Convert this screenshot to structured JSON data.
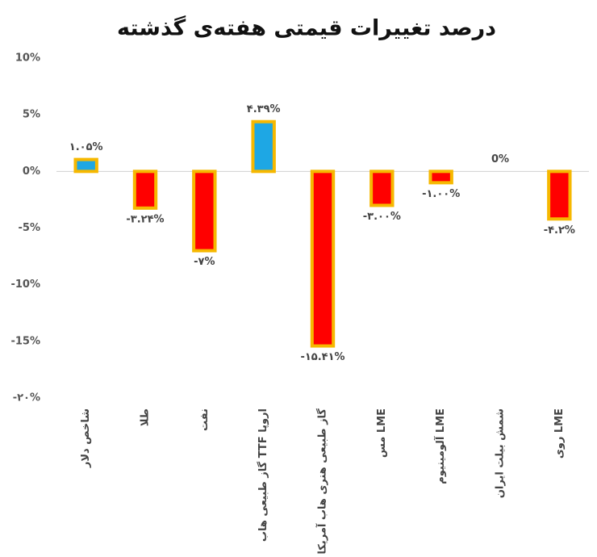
{
  "chart_data": {
    "type": "bar",
    "title": "درصد تغییرات قیمتی هفته‌ی گذشته",
    "categories": [
      "شاخص دلار",
      "طلا",
      "نفت",
      "گاز طبیعی هاب TTF اروپا",
      "گاز طبیعی هنری هاب آمریکا",
      "مس LME",
      "آلومینیوم LME",
      "شمش بیلت ایران",
      "روی LME"
    ],
    "values": [
      1.05,
      -3.24,
      -7,
      4.39,
      -15.41,
      -3.0,
      -1.0,
      0,
      -4.2
    ],
    "value_labels": [
      "۱.۰۵%",
      "-۳.۲۴%",
      "-۷%",
      "۴.۳۹%",
      "-۱۵.۴۱%",
      "-۳.۰۰%",
      "-۱.۰۰%",
      "0%",
      "-۴.۲%"
    ],
    "colors": [
      "#1ea7e4",
      "#ff0000",
      "#ff0000",
      "#1ea7e4",
      "#ff0000",
      "#ff0000",
      "#ff0000",
      "#ff0000",
      "#ff0000"
    ],
    "border_color": "#f6b800",
    "ylim": [
      -20,
      10
    ],
    "yticks": [
      {
        "value": 10,
        "label": "10%"
      },
      {
        "value": 5,
        "label": "5%"
      },
      {
        "value": 0,
        "label": "0%"
      },
      {
        "value": -5,
        "label": "-5%"
      },
      {
        "value": -10,
        "label": "-10%"
      },
      {
        "value": -15,
        "label": "-15%"
      },
      {
        "value": -20,
        "label": "-۲۰%"
      }
    ],
    "grid": false
  }
}
